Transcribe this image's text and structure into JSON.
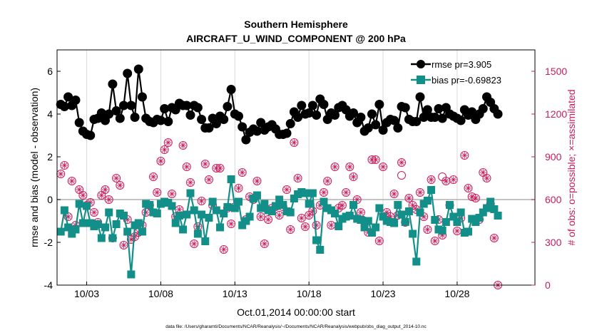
{
  "chart_data": {
    "type": "line",
    "title": "Southern Hemisphere",
    "subtitle": "AIRCRAFT_U_WIND_COMPONENT @ 200 hPa",
    "xlabel": "Oct.01,2014 00:00:00 start",
    "ylabel": "rmse and bias (model - observation)",
    "ylabel_right": "# of obs: o=possible; ×=assimilated",
    "footnote": "data file: /Users/gharamti/Documents/NCAR/Reanalysis/~/Documents/NCAR/Reanalysis/webpub/obs_diag_output_2014-10.nc",
    "xlim": [
      1,
      33.25
    ],
    "ylim": [
      -4,
      7
    ],
    "ylim_right": [
      0,
      1650
    ],
    "x_ticks": [
      3,
      8,
      13,
      18,
      23,
      28
    ],
    "x_tick_labels": [
      "10/03",
      "10/08",
      "10/13",
      "10/18",
      "10/23",
      "10/28"
    ],
    "y_ticks": [
      -4,
      -2,
      0,
      2,
      4,
      6
    ],
    "y_tick_labels": [
      "-4",
      "-2",
      "0",
      "2",
      "4",
      "6"
    ],
    "y_ticks_right": [
      0,
      300,
      600,
      900,
      1200,
      1500
    ],
    "y_tick_labels_right": [
      "0",
      "300",
      "600",
      "900",
      "1200",
      "1500"
    ],
    "zero_line": 0,
    "legend": [
      {
        "name": "rmse pr=3.905",
        "color": "#000000",
        "marker": "circle"
      },
      {
        "name": "bias pr=-0.69823",
        "color": "#138f8a",
        "marker": "square"
      }
    ],
    "colors": {
      "rmse": "#000000",
      "bias": "#138f8a",
      "obs": "#c71c5c",
      "zero": "#b0b0b0"
    },
    "series": [
      {
        "name": "rmse",
        "x_start": 1.25,
        "dx": 0.25,
        "values": [
          4.45,
          4.35,
          4.8,
          4.4,
          4.65,
          3.6,
          3.2,
          3.05,
          3.0,
          3.75,
          3.8,
          4.05,
          3.7,
          4.0,
          5.4,
          4.15,
          3.8,
          4.4,
          5.9,
          4.4,
          3.85,
          6.1,
          4.8,
          3.8,
          3.65,
          3.6,
          3.75,
          3.7,
          4.25,
          3.65,
          4.3,
          4.2,
          4.5,
          4.4,
          4.4,
          3.95,
          4.4,
          4.3,
          3.75,
          3.35,
          3.35,
          3.8,
          3.55,
          3.9,
          3.75,
          4.35,
          5.15,
          4.0,
          3.9,
          3.4,
          2.8,
          3.15,
          3.3,
          3.2,
          3.6,
          3.25,
          3.4,
          3.5,
          3.3,
          3.05,
          3.05,
          3.1,
          3.55,
          4.1,
          3.85,
          4.4,
          4.0,
          4.05,
          4.4,
          3.95,
          4.7,
          4.45,
          3.75,
          4.05,
          3.95,
          4.3,
          4.4,
          4.2,
          3.9,
          4.05,
          3.6,
          3.85,
          3.2,
          3.35,
          4.0,
          3.5,
          4.45,
          3.25,
          3.6,
          3.75,
          3.7,
          3.35,
          4.35,
          4.3,
          3.75,
          3.65,
          3.65,
          4.8,
          3.85,
          4.2,
          3.85,
          3.85,
          4.25,
          3.8,
          4.3,
          4.0,
          3.9,
          3.8,
          3.7,
          4.2,
          3.95,
          4.1,
          3.75,
          4.0,
          4.25,
          4.8,
          4.55,
          4.25,
          4.0
        ]
      },
      {
        "name": "bias",
        "x_start": 1.25,
        "dx": 0.25,
        "values": [
          -1.5,
          -0.5,
          -1.3,
          -1.6,
          -1.4,
          -0.2,
          -1.1,
          -0.3,
          -1.1,
          -1.25,
          -1.15,
          -1.8,
          -1.3,
          -0.6,
          -1.8,
          -1.15,
          -0.65,
          -0.75,
          -1.5,
          -3.5,
          -1.2,
          -1.1,
          -1.5,
          -0.2,
          -0.25,
          -0.6,
          -0.65,
          -0.2,
          -0.1,
          -0.15,
          -0.3,
          -1.1,
          -0.75,
          -1.4,
          -0.7,
          0.3,
          -0.5,
          -1.6,
          -0.7,
          -1.95,
          -0.85,
          -0.1,
          -0.5,
          -1.3,
          -0.65,
          -0.35,
          0.95,
          -0.4,
          -0.1,
          -1.2,
          -1.0,
          -0.8,
          0.05,
          0.2,
          -0.4,
          -0.2,
          -0.5,
          -0.55,
          -0.3,
          0.0,
          -0.25,
          -0.55,
          -0.6,
          0.05,
          0.25,
          0.35,
          0.3,
          -0.2,
          0.3,
          -1.9,
          -2.35,
          -0.1,
          -0.4,
          -0.5,
          -0.65,
          -1.25,
          -0.9,
          -0.8,
          -0.75,
          -0.25,
          -0.9,
          -0.95,
          -1.3,
          -1.0,
          -1.55,
          -1.3,
          -0.4,
          -0.8,
          -1.0,
          -1.05,
          -1.1,
          -0.25,
          -0.7,
          -1.05,
          -0.55,
          -1.6,
          -2.9,
          -0.6,
          -0.2,
          -0.05,
          0.45,
          -0.95,
          -1.4,
          -1.45,
          -1.05,
          -0.25,
          -0.8,
          -1.05,
          -0.6,
          -1.55,
          -1.5,
          -0.9,
          -1.05,
          -0.85,
          -0.6,
          -0.4,
          -0.1,
          -0.45,
          -0.75
        ]
      },
      {
        "name": "obs",
        "axis": "right",
        "x_start": 1.25,
        "dx": 0.25,
        "values": [
          780,
          840,
          480,
          730,
          420,
          670,
          630,
          560,
          580,
          510,
          440,
          630,
          670,
          600,
          330,
          750,
          700,
          280,
          460,
          320,
          340,
          370,
          420,
          510,
          560,
          760,
          650,
          870,
          950,
          1000,
          640,
          480,
          530,
          980,
          830,
          720,
          290,
          410,
          590,
          850,
          740,
          560,
          820,
          820,
          250,
          540,
          430,
          550,
          680,
          790,
          460,
          620,
          600,
          730,
          480,
          290,
          460,
          540,
          550,
          490,
          550,
          670,
          390,
          1000,
          750,
          470,
          410,
          490,
          520,
          420,
          560,
          650,
          730,
          420,
          830,
          540,
          560,
          650,
          830,
          760,
          600,
          510,
          450,
          370,
          880,
          880,
          310,
          830,
          510,
          480,
          640,
          490,
          860,
          440,
          610,
          560,
          530,
          650,
          480,
          390,
          740,
          310,
          460,
          350,
          730,
          560,
          740,
          380,
          470,
          910,
          680,
          620,
          610,
          460,
          790,
          750,
          570,
          330,
          0
        ]
      },
      {
        "name": "obs_possible",
        "axis": "right",
        "points": [
          [
            24.25,
            770
          ],
          [
            27.0,
            760
          ]
        ]
      }
    ]
  }
}
